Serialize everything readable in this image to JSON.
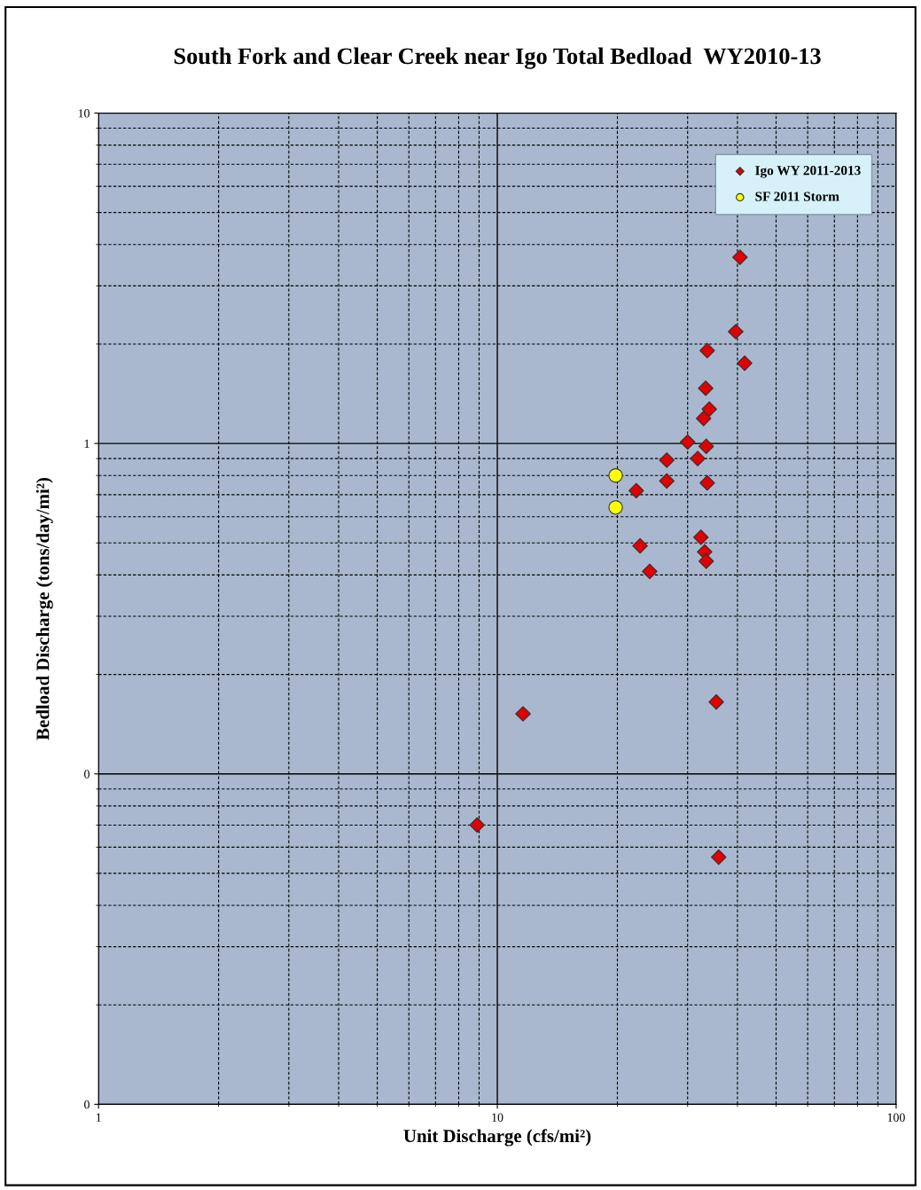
{
  "chart_data": {
    "type": "scatter",
    "title": "South Fork and Clear Creek near Igo Total Bedload  WY2010-13",
    "xlabel": "Unit Discharge (cfs/mi²)",
    "ylabel": "Bedload Discharge (tons/day/mi²)",
    "log": "xy",
    "grid": true,
    "legend": "top right",
    "xlim": [
      1,
      100
    ],
    "xticks": [
      1,
      10,
      100
    ],
    "ylim": [
      0.01,
      10
    ],
    "yticks": [
      {
        "value": 0.01,
        "label": "0"
      },
      {
        "value": 0.1,
        "label": "0"
      },
      {
        "value": 1,
        "label": "1"
      },
      {
        "value": 10,
        "label": "10"
      }
    ],
    "series": [
      {
        "name": "Igo WY 2011-2013",
        "color": "#e00000",
        "marker": "diamond",
        "x": [
          40.6,
          39.6,
          41.7,
          33.6,
          33.3,
          34.0,
          32.9,
          30.0,
          33.4,
          26.6,
          31.8,
          26.6,
          32.9,
          33.6,
          22.3,
          32.4,
          22.8,
          33.1,
          33.4,
          24.1,
          11.6,
          35.4,
          8.9,
          35.9
        ],
        "values": [
          3.66,
          2.18,
          1.75,
          1.91,
          1.47,
          1.27,
          1.19,
          1.01,
          0.98,
          0.89,
          0.9,
          0.77,
          null,
          0.76,
          0.72,
          0.52,
          0.49,
          0.47,
          0.44,
          0.41,
          0.152,
          0.165,
          0.07,
          0.056
        ]
      },
      {
        "name": "SF 2011 Storm",
        "color": "#ffff00",
        "marker": "circle",
        "x": [
          19.8,
          19.8
        ],
        "values": [
          0.8,
          0.64
        ]
      }
    ]
  }
}
